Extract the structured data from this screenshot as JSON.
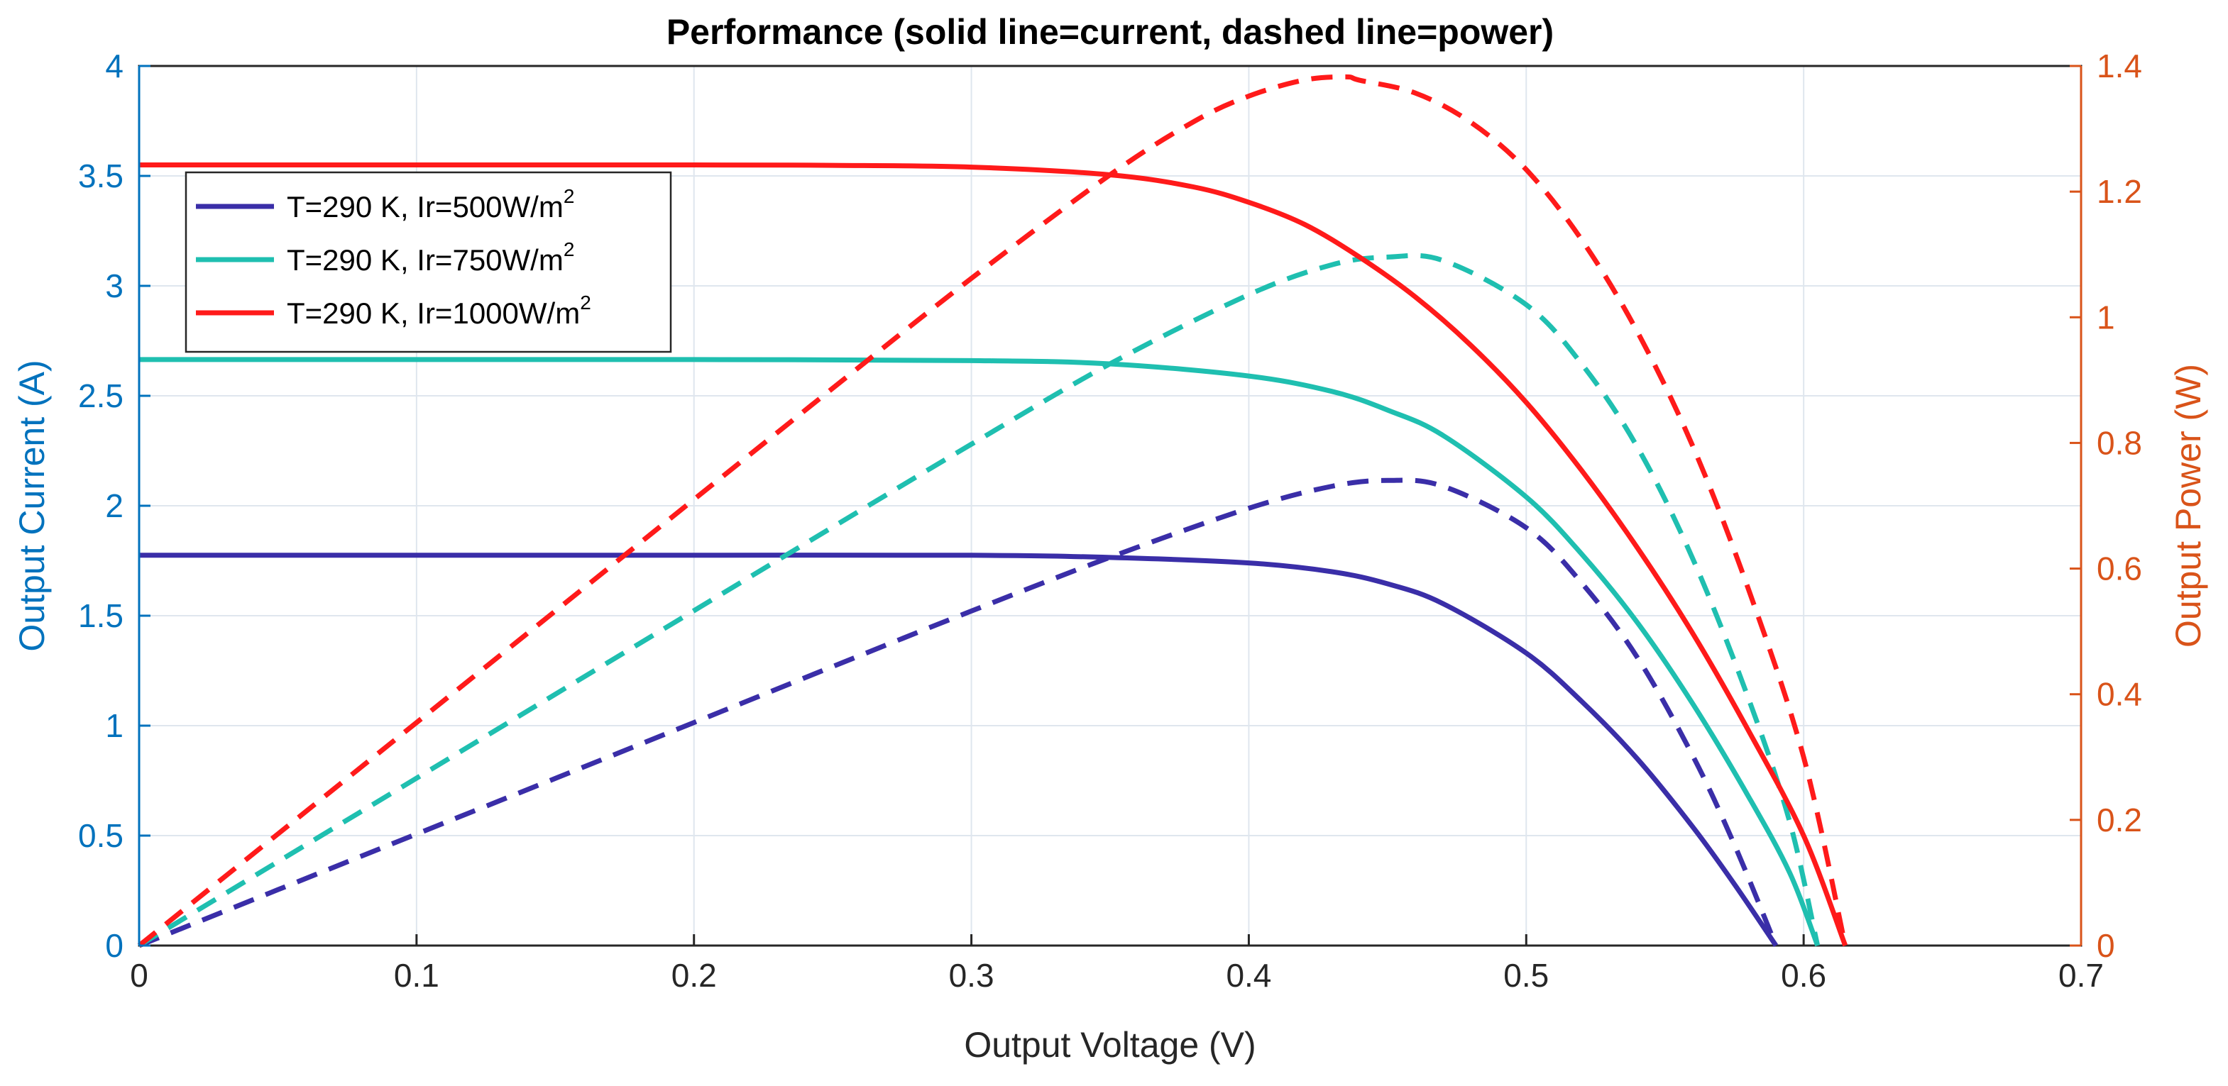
{
  "chart_data": {
    "type": "line",
    "title": "Performance (solid line=current, dashed line=power)",
    "xlabel": "Output Voltage (V)",
    "ylabel_left": "Output Current (A)",
    "ylabel_right": "Output Power (W)",
    "xlim": [
      0,
      0.7
    ],
    "ylim_left": [
      0,
      4
    ],
    "ylim_right": [
      0,
      1.4
    ],
    "x_ticks": [
      "0",
      "0.1",
      "0.2",
      "0.3",
      "0.4",
      "0.5",
      "0.6",
      "0.7"
    ],
    "y_left_ticks": [
      "0",
      "0.5",
      "1",
      "1.5",
      "2",
      "2.5",
      "3",
      "3.5",
      "4"
    ],
    "y_right_ticks": [
      "0",
      "0.2",
      "0.4",
      "0.6",
      "0.8",
      "1",
      "1.2",
      "1.4"
    ],
    "grid": true,
    "legend_position": "top-left",
    "colors": {
      "left_axis": "#0072BD",
      "right_axis": "#D95319",
      "grid": "#dfe6ee"
    },
    "series": [
      {
        "name_prefix": "T=290 K, Ir=500W/m",
        "name_sup": "2",
        "color": "#3A2EA8",
        "current": {
          "x": [
            0,
            0.1,
            0.2,
            0.3,
            0.35,
            0.4,
            0.43,
            0.45,
            0.47,
            0.5,
            0.52,
            0.54,
            0.56,
            0.575,
            0.59
          ],
          "y": [
            1.775,
            1.775,
            1.775,
            1.775,
            1.765,
            1.74,
            1.7,
            1.645,
            1.555,
            1.33,
            1.11,
            0.85,
            0.54,
            0.28,
            0
          ]
        },
        "power": {
          "x": [
            0,
            0.05,
            0.1,
            0.15,
            0.2,
            0.25,
            0.3,
            0.35,
            0.4,
            0.43,
            0.45,
            0.47,
            0.5,
            0.52,
            0.54,
            0.56,
            0.575,
            0.59
          ],
          "y": [
            0,
            0.0888,
            0.1775,
            0.266,
            0.355,
            0.444,
            0.5325,
            0.618,
            0.696,
            0.731,
            0.7403,
            0.731,
            0.665,
            0.577,
            0.459,
            0.3024,
            0.161,
            0
          ]
        }
      },
      {
        "name_prefix": "T=290 K, Ir=750W/m",
        "name_sup": "2",
        "color": "#1FBFB0",
        "current": {
          "x": [
            0,
            0.1,
            0.2,
            0.3,
            0.35,
            0.4,
            0.43,
            0.45,
            0.47,
            0.5,
            0.52,
            0.54,
            0.56,
            0.58,
            0.595,
            0.605
          ],
          "y": [
            2.665,
            2.665,
            2.665,
            2.66,
            2.645,
            2.59,
            2.52,
            2.435,
            2.32,
            2.04,
            1.78,
            1.47,
            1.1,
            0.68,
            0.33,
            0
          ]
        },
        "power": {
          "x": [
            0,
            0.05,
            0.1,
            0.15,
            0.2,
            0.25,
            0.3,
            0.35,
            0.4,
            0.43,
            0.45,
            0.47,
            0.5,
            0.52,
            0.54,
            0.56,
            0.58,
            0.595,
            0.605
          ],
          "y": [
            0,
            0.1333,
            0.2665,
            0.4,
            0.533,
            0.666,
            0.798,
            0.926,
            1.036,
            1.0836,
            1.0958,
            1.0904,
            1.02,
            0.9256,
            0.7938,
            0.616,
            0.3944,
            0.1964,
            0
          ]
        }
      },
      {
        "name_prefix": "T=290 K, Ir=1000W/m",
        "name_sup": "2",
        "color": "#FF1A1A",
        "current": {
          "x": [
            0,
            0.1,
            0.2,
            0.25,
            0.3,
            0.35,
            0.38,
            0.4,
            0.42,
            0.44,
            0.46,
            0.48,
            0.5,
            0.52,
            0.54,
            0.56,
            0.58,
            0.6,
            0.615
          ],
          "y": [
            3.55,
            3.55,
            3.55,
            3.548,
            3.54,
            3.505,
            3.45,
            3.38,
            3.28,
            3.13,
            2.95,
            2.73,
            2.47,
            2.16,
            1.81,
            1.42,
            0.98,
            0.5,
            0
          ]
        },
        "power": {
          "x": [
            0,
            0.05,
            0.1,
            0.15,
            0.2,
            0.25,
            0.3,
            0.35,
            0.38,
            0.4,
            0.42,
            0.435,
            0.44,
            0.46,
            0.48,
            0.5,
            0.52,
            0.54,
            0.56,
            0.58,
            0.6,
            0.615
          ],
          "y": [
            0,
            0.1775,
            0.355,
            0.5325,
            0.71,
            0.887,
            1.062,
            1.2268,
            1.311,
            1.352,
            1.3776,
            1.3826,
            1.3772,
            1.357,
            1.3104,
            1.235,
            1.1232,
            0.9774,
            0.7952,
            0.5684,
            0.3,
            0
          ]
        }
      }
    ]
  }
}
